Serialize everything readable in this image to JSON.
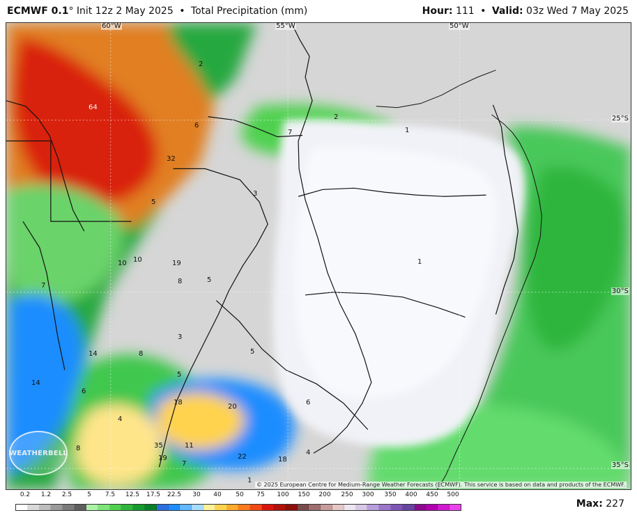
{
  "header": {
    "model": "ECMWF 0.1",
    "degree": "°",
    "init": "Init 12z 2 May 2025",
    "bullet": "•",
    "field": "Total Precipitation (mm)",
    "hour_label": "Hour:",
    "hour_value": "111",
    "valid_label": "Valid:",
    "valid_value": "03z Wed 7 May 2025"
  },
  "map": {
    "grid_labels": {
      "lon60": "60°W",
      "lon55": "55°W",
      "lon50": "50°W",
      "lat25": "25°S",
      "lat30": "30°S",
      "lat35": "35°S"
    },
    "field_labels": [
      "64",
      "2",
      "6",
      "7",
      "2",
      "1",
      "32",
      "5",
      "3",
      "10",
      "10",
      "19",
      "8",
      "5",
      "7",
      "1",
      "14",
      "8",
      "14",
      "5",
      "3",
      "5",
      "6",
      "18",
      "20",
      "6",
      "4",
      "8",
      "35",
      "19",
      "11",
      "22",
      "18",
      "4",
      "7",
      "1"
    ],
    "copyright": "© 2025 European Centre for Medium-Range Weather Forecasts (ECMWF). This service is based on data and products of the ECMWF.",
    "logo": "WEATHERBELL"
  },
  "legend": {
    "labels": [
      "0.2",
      "1.2",
      "2.5",
      "5",
      "7.5",
      "12.5",
      "17.5",
      "22.5",
      "30",
      "40",
      "50",
      "75",
      "100",
      "150",
      "200",
      "250",
      "300",
      "350",
      "400",
      "450",
      "500"
    ],
    "colors": [
      "#ffffff",
      "#d9d9d9",
      "#bdbdbd",
      "#9a9a9a",
      "#7b7b7b",
      "#5f5f5f",
      "#aef2a7",
      "#7de57a",
      "#4fd14f",
      "#2fb53d",
      "#159b2f",
      "#0b7f2a",
      "#2d6fe0",
      "#1f8dff",
      "#63b8ff",
      "#a8dcff",
      "#fff09a",
      "#ffd34d",
      "#ffab2e",
      "#ff7b1e",
      "#f04b16",
      "#d8160f",
      "#b0130c",
      "#8b110a",
      "#7a4b4b",
      "#9f6e6e",
      "#c89b9b",
      "#e5c7c7",
      "#ede6ef",
      "#d9c7e7",
      "#b99fdb",
      "#9b76ca",
      "#7e55b5",
      "#66449f",
      "#8c0a8c",
      "#b000b0",
      "#d11ad1",
      "#ec42ec"
    ]
  },
  "footer": {
    "max_label": "Max:",
    "max_value": "227"
  }
}
